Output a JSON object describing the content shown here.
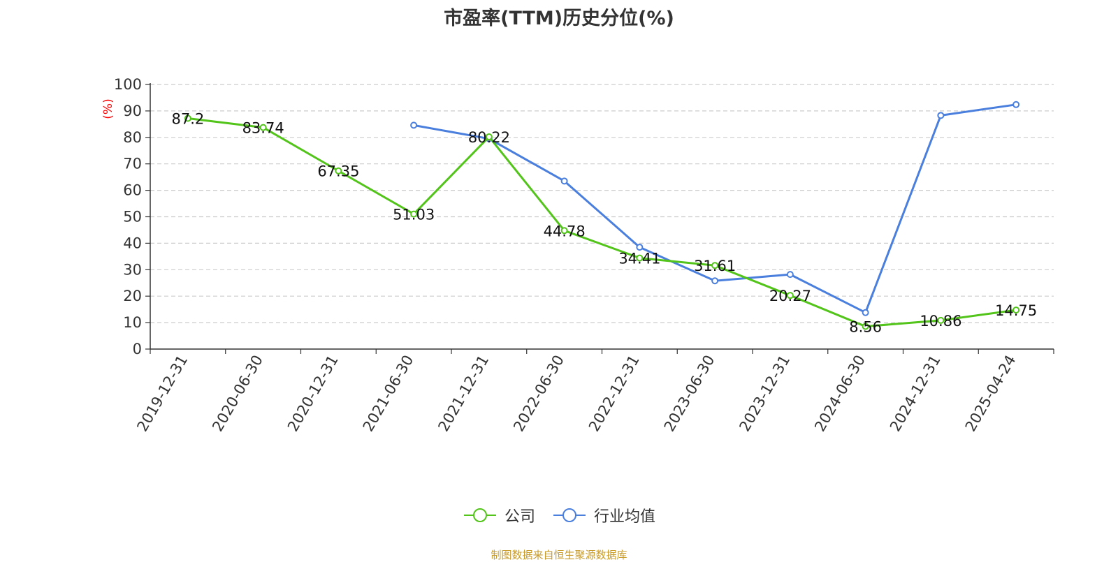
{
  "colors": {
    "company": "#52c41a",
    "industry": "#4a7fde",
    "unit": "#ff0000",
    "source": "#c89b2a"
  },
  "chart_data": {
    "type": "line",
    "title": "市盈率(TTM)历史分位(%)",
    "ylabel": "(%)",
    "ylim": [
      0,
      100
    ],
    "yticks": [
      0,
      10,
      20,
      30,
      40,
      50,
      60,
      70,
      80,
      90,
      100
    ],
    "grid": true,
    "legend_position": "bottom",
    "categories": [
      "2019-12-31",
      "2020-06-30",
      "2020-12-31",
      "2021-06-30",
      "2021-12-31",
      "2022-06-30",
      "2022-12-31",
      "2023-06-30",
      "2023-12-31",
      "2024-06-30",
      "2024-12-31",
      "2025-04-24"
    ],
    "series": [
      {
        "name": "公司",
        "values": [
          87.2,
          83.74,
          67.35,
          51.03,
          80.22,
          44.78,
          34.41,
          31.61,
          20.27,
          8.56,
          10.86,
          14.75
        ],
        "labels": [
          "87.2",
          "83.74",
          "67.35",
          "51.03",
          "80.22",
          "44.78",
          "34.41",
          "31.61",
          "20.27",
          "8.56",
          "10.86",
          "14.75"
        ]
      },
      {
        "name": "行业均值",
        "values": [
          null,
          null,
          null,
          84.6,
          79.5,
          63.5,
          38.5,
          25.8,
          28.2,
          13.8,
          88.3,
          92.4
        ]
      }
    ]
  },
  "footer": {
    "source": "制图数据来自恒生聚源数据库"
  }
}
